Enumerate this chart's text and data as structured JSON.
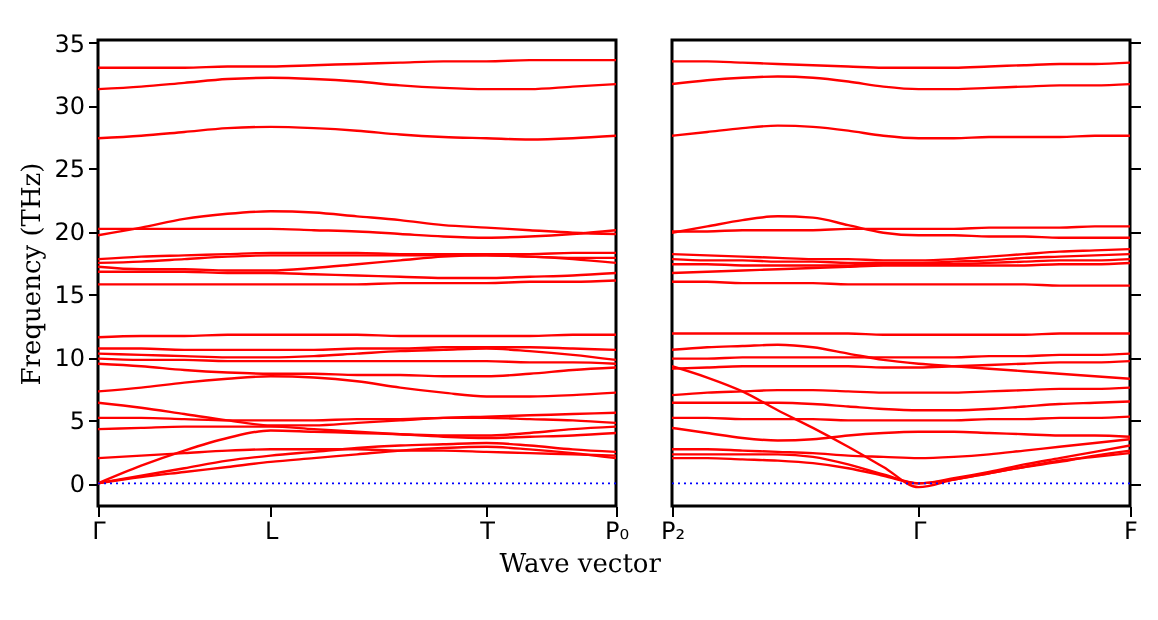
{
  "chart_data": [
    {
      "type": "line",
      "ylabel": "Frequency (THz)",
      "xlabel": "Wave vector",
      "categories": [
        "Γ",
        null,
        null,
        null,
        "L",
        null,
        null,
        null,
        null,
        "T",
        null,
        null,
        "P₀"
      ],
      "ylim": [
        -1.8,
        35.2
      ],
      "yticks": [
        0,
        5,
        10,
        15,
        20,
        25,
        30,
        35
      ],
      "grid": false,
      "ref_lines": [
        {
          "axis": "y",
          "value": 0,
          "color": "#0000ff",
          "line_style": "dotted"
        }
      ],
      "series": [
        {
          "color": "#ff0000",
          "values": [
            33.0,
            33.0,
            33.0,
            33.1,
            33.1,
            33.2,
            33.3,
            33.4,
            33.5,
            33.5,
            33.6,
            33.6,
            33.6
          ]
        },
        {
          "color": "#ff0000",
          "values": [
            31.3,
            31.5,
            31.8,
            32.1,
            32.2,
            32.1,
            31.9,
            31.6,
            31.4,
            31.3,
            31.3,
            31.5,
            31.7
          ]
        },
        {
          "color": "#ff0000",
          "values": [
            27.4,
            27.6,
            27.9,
            28.2,
            28.3,
            28.2,
            28.0,
            27.7,
            27.5,
            27.4,
            27.3,
            27.4,
            27.6
          ]
        },
        {
          "color": "#ff0000",
          "values": [
            19.7,
            20.3,
            21.0,
            21.4,
            21.6,
            21.5,
            21.2,
            20.9,
            20.5,
            20.3,
            20.1,
            19.9,
            19.8
          ]
        },
        {
          "color": "#ff0000",
          "values": [
            20.2,
            20.2,
            20.2,
            20.2,
            20.2,
            20.1,
            20.0,
            19.8,
            19.6,
            19.5,
            19.6,
            19.8,
            20.1
          ]
        },
        {
          "color": "#ff0000",
          "values": [
            17.8,
            18.0,
            18.1,
            18.2,
            18.3,
            18.3,
            18.3,
            18.2,
            18.2,
            18.2,
            18.2,
            18.3,
            18.3
          ]
        },
        {
          "color": "#ff0000",
          "values": [
            17.5,
            17.6,
            17.8,
            18.0,
            18.1,
            18.1,
            18.1,
            18.1,
            18.1,
            18.1,
            18.0,
            17.9,
            17.9
          ]
        },
        {
          "color": "#ff0000",
          "values": [
            17.2,
            17.0,
            17.0,
            16.9,
            16.9,
            17.1,
            17.4,
            17.7,
            18.0,
            18.1,
            18.0,
            17.8,
            17.5
          ]
        },
        {
          "color": "#ff0000",
          "values": [
            16.8,
            16.8,
            16.8,
            16.7,
            16.7,
            16.6,
            16.5,
            16.4,
            16.3,
            16.3,
            16.4,
            16.5,
            16.7
          ]
        },
        {
          "color": "#ff0000",
          "values": [
            15.8,
            15.8,
            15.8,
            15.8,
            15.8,
            15.8,
            15.8,
            15.9,
            15.9,
            15.9,
            16.0,
            16.0,
            16.1
          ]
        },
        {
          "color": "#ff0000",
          "values": [
            11.6,
            11.7,
            11.7,
            11.8,
            11.8,
            11.8,
            11.8,
            11.7,
            11.7,
            11.7,
            11.7,
            11.8,
            11.8
          ]
        },
        {
          "color": "#ff0000",
          "values": [
            10.7,
            10.7,
            10.6,
            10.6,
            10.6,
            10.6,
            10.7,
            10.7,
            10.8,
            10.8,
            10.8,
            10.7,
            10.6
          ]
        },
        {
          "color": "#ff0000",
          "values": [
            10.3,
            10.2,
            10.1,
            10.0,
            10.0,
            10.1,
            10.3,
            10.5,
            10.6,
            10.7,
            10.5,
            10.2,
            9.8
          ]
        },
        {
          "color": "#ff0000",
          "values": [
            9.9,
            9.8,
            9.8,
            9.7,
            9.7,
            9.7,
            9.7,
            9.7,
            9.7,
            9.7,
            9.6,
            9.6,
            9.5
          ]
        },
        {
          "color": "#ff0000",
          "values": [
            9.5,
            9.3,
            9.0,
            8.8,
            8.7,
            8.7,
            8.6,
            8.6,
            8.5,
            8.5,
            8.7,
            9.0,
            9.2
          ]
        },
        {
          "color": "#ff0000",
          "values": [
            7.3,
            7.6,
            8.0,
            8.3,
            8.5,
            8.4,
            8.1,
            7.6,
            7.2,
            6.9,
            6.9,
            7.0,
            7.2
          ]
        },
        {
          "color": "#ff0000",
          "values": [
            6.4,
            6.0,
            5.5,
            5.0,
            4.6,
            4.6,
            4.8,
            5.0,
            5.2,
            5.3,
            5.4,
            5.5,
            5.6
          ]
        },
        {
          "color": "#ff0000",
          "values": [
            5.2,
            5.2,
            5.1,
            5.0,
            5.0,
            5.0,
            5.1,
            5.1,
            5.2,
            5.2,
            5.1,
            5.0,
            4.8
          ]
        },
        {
          "color": "#ff0000",
          "values": [
            4.3,
            4.4,
            4.5,
            4.5,
            4.5,
            4.3,
            4.1,
            3.9,
            3.7,
            3.6,
            3.7,
            3.8,
            4.0
          ]
        },
        {
          "color": "#ff0000",
          "values": [
            2.0,
            2.2,
            2.4,
            2.6,
            2.7,
            2.7,
            2.7,
            2.6,
            2.6,
            2.5,
            2.4,
            2.3,
            2.2
          ]
        },
        {
          "color": "#ff0000",
          "values": [
            0,
            0.5,
            0.9,
            1.3,
            1.7,
            2.0,
            2.3,
            2.6,
            2.8,
            2.9,
            2.7,
            2.4,
            2.0
          ]
        },
        {
          "color": "#ff0000",
          "values": [
            0,
            0.6,
            1.2,
            1.8,
            2.2,
            2.5,
            2.8,
            3.0,
            3.1,
            3.2,
            3.0,
            2.7,
            2.5
          ]
        },
        {
          "color": "#ff0000",
          "values": [
            0,
            1.4,
            2.6,
            3.6,
            4.2,
            4.1,
            4.0,
            3.9,
            3.8,
            3.8,
            4.0,
            4.3,
            4.5
          ]
        }
      ]
    },
    {
      "type": "line",
      "categories": [
        "P₂",
        null,
        null,
        null,
        null,
        null,
        null,
        "Γ",
        null,
        null,
        null,
        null,
        null,
        "F"
      ],
      "ylim": [
        -1.8,
        35.2
      ],
      "yticks": [
        0,
        5,
        10,
        15,
        20,
        25,
        30,
        35
      ],
      "tick_labels": "x",
      "grid": false,
      "ref_lines": [
        {
          "axis": "y",
          "value": 0,
          "color": "#0000ff",
          "line_style": "dotted"
        }
      ],
      "series": [
        {
          "color": "#ff0000",
          "values": [
            33.5,
            33.5,
            33.4,
            33.3,
            33.2,
            33.1,
            33.0,
            33.0,
            33.0,
            33.1,
            33.2,
            33.3,
            33.3,
            33.4
          ]
        },
        {
          "color": "#ff0000",
          "values": [
            31.7,
            32.0,
            32.2,
            32.3,
            32.2,
            31.9,
            31.5,
            31.3,
            31.3,
            31.4,
            31.5,
            31.6,
            31.6,
            31.7
          ]
        },
        {
          "color": "#ff0000",
          "values": [
            27.6,
            27.9,
            28.2,
            28.4,
            28.3,
            28.0,
            27.6,
            27.4,
            27.4,
            27.5,
            27.5,
            27.5,
            27.6,
            27.6
          ]
        },
        {
          "color": "#ff0000",
          "values": [
            19.9,
            20.4,
            20.9,
            21.2,
            21.1,
            20.5,
            19.9,
            19.7,
            19.7,
            19.6,
            19.6,
            19.5,
            19.5,
            19.5
          ]
        },
        {
          "color": "#ff0000",
          "values": [
            20.0,
            20.0,
            20.1,
            20.1,
            20.1,
            20.2,
            20.2,
            20.2,
            20.2,
            20.3,
            20.3,
            20.3,
            20.4,
            20.4
          ]
        },
        {
          "color": "#ff0000",
          "values": [
            18.2,
            18.1,
            18.0,
            17.9,
            17.8,
            17.8,
            17.7,
            17.7,
            17.8,
            18.0,
            18.2,
            18.4,
            18.5,
            18.6
          ]
        },
        {
          "color": "#ff0000",
          "values": [
            17.8,
            17.7,
            17.7,
            17.6,
            17.6,
            17.5,
            17.5,
            17.5,
            17.6,
            17.7,
            17.9,
            18.0,
            18.1,
            18.2
          ]
        },
        {
          "color": "#ff0000",
          "values": [
            17.4,
            17.4,
            17.3,
            17.3,
            17.3,
            17.3,
            17.4,
            17.4,
            17.4,
            17.5,
            17.6,
            17.7,
            17.7,
            17.8
          ]
        },
        {
          "color": "#ff0000",
          "values": [
            16.7,
            16.8,
            16.9,
            17.0,
            17.1,
            17.2,
            17.3,
            17.3,
            17.3,
            17.3,
            17.3,
            17.4,
            17.4,
            17.5
          ]
        },
        {
          "color": "#ff0000",
          "values": [
            16.0,
            16.0,
            15.9,
            15.9,
            15.9,
            15.8,
            15.8,
            15.8,
            15.8,
            15.8,
            15.8,
            15.7,
            15.7,
            15.7
          ]
        },
        {
          "color": "#ff0000",
          "values": [
            11.9,
            11.9,
            11.9,
            11.9,
            11.9,
            11.9,
            11.8,
            11.8,
            11.8,
            11.8,
            11.8,
            11.9,
            11.9,
            11.9
          ]
        },
        {
          "color": "#ff0000",
          "values": [
            10.6,
            10.8,
            10.9,
            11.0,
            10.8,
            10.3,
            9.8,
            9.5,
            9.3,
            9.1,
            8.9,
            8.7,
            8.5,
            8.3
          ]
        },
        {
          "color": "#ff0000",
          "values": [
            9.9,
            9.9,
            10.0,
            10.0,
            10.0,
            10.0,
            10.0,
            10.0,
            10.0,
            10.1,
            10.1,
            10.2,
            10.2,
            10.3
          ]
        },
        {
          "color": "#ff0000",
          "values": [
            9.1,
            9.2,
            9.3,
            9.3,
            9.3,
            9.3,
            9.2,
            9.2,
            9.3,
            9.4,
            9.5,
            9.6,
            9.6,
            9.7
          ]
        },
        {
          "color": "#ff0000",
          "values": [
            7.0,
            7.2,
            7.3,
            7.4,
            7.4,
            7.3,
            7.2,
            7.2,
            7.2,
            7.3,
            7.4,
            7.5,
            7.5,
            7.6
          ]
        },
        {
          "color": "#ff0000",
          "values": [
            6.4,
            6.4,
            6.4,
            6.4,
            6.3,
            6.1,
            5.9,
            5.8,
            5.8,
            5.9,
            6.1,
            6.3,
            6.4,
            6.5
          ]
        },
        {
          "color": "#ff0000",
          "values": [
            5.2,
            5.2,
            5.1,
            5.1,
            5.1,
            5.0,
            5.0,
            5.0,
            5.0,
            5.1,
            5.1,
            5.2,
            5.2,
            5.3
          ]
        },
        {
          "color": "#ff0000",
          "values": [
            4.4,
            4.0,
            3.6,
            3.4,
            3.5,
            3.8,
            4.0,
            4.1,
            4.1,
            4.0,
            3.9,
            3.8,
            3.8,
            3.7
          ]
        },
        {
          "color": "#ff0000",
          "values": [
            2.7,
            2.7,
            2.6,
            2.5,
            2.4,
            2.2,
            2.1,
            2.0,
            2.1,
            2.3,
            2.6,
            2.9,
            3.2,
            3.5
          ]
        },
        {
          "color": "#ff0000",
          "values": [
            9.3,
            8.4,
            7.3,
            5.8,
            4.4,
            2.9,
            1.3,
            -0.3,
            0.3,
            0.8,
            1.3,
            1.8,
            2.1,
            2.4
          ]
        },
        {
          "color": "#ff0000",
          "values": [
            2.3,
            2.3,
            2.3,
            2.3,
            2.1,
            1.5,
            0.7,
            0,
            0.4,
            0.9,
            1.5,
            2.0,
            2.5,
            3.0
          ]
        },
        {
          "color": "#ff0000",
          "values": [
            2.0,
            2.0,
            1.9,
            1.8,
            1.6,
            1.2,
            0.6,
            0,
            0.3,
            0.8,
            1.3,
            1.7,
            2.2,
            2.6
          ]
        }
      ]
    }
  ]
}
